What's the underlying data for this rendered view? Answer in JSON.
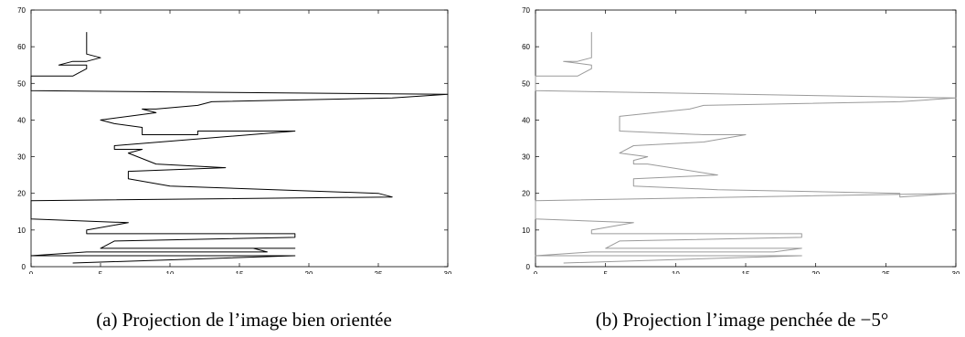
{
  "chart_data": [
    {
      "type": "line",
      "title": "",
      "xlabel": "",
      "ylabel": "",
      "xlim": [
        0,
        30
      ],
      "ylim": [
        0,
        70
      ],
      "xticks": [
        0,
        5,
        10,
        15,
        20,
        25,
        30
      ],
      "yticks": [
        0,
        10,
        20,
        30,
        40,
        50,
        60,
        70
      ],
      "grid": false,
      "line_color": "#000000",
      "caption": "(a) Projection de l’image bien orientée",
      "series": [
        {
          "x": [
            4,
            4,
            4,
            5,
            4,
            3,
            2,
            4,
            4,
            3,
            0,
            0,
            30,
            26,
            13,
            12,
            9,
            8,
            9,
            5,
            6,
            8,
            8,
            12,
            12,
            19,
            6,
            6,
            8,
            7,
            9,
            14,
            7,
            7,
            10,
            25,
            26,
            0,
            0,
            0,
            7,
            4,
            4,
            19,
            19,
            6,
            5,
            19,
            16,
            17,
            4,
            0,
            19,
            3
          ],
          "y": [
            64,
            60,
            58,
            57,
            56,
            56,
            55,
            55,
            54,
            52,
            52,
            48,
            47,
            46,
            45,
            44,
            43,
            43,
            42,
            40,
            39,
            38,
            36,
            36,
            37,
            37,
            33,
            32,
            32,
            31,
            28,
            27,
            26,
            24,
            22,
            20,
            19,
            18,
            13,
            13,
            12,
            10,
            9,
            9,
            8,
            7,
            5,
            5,
            5,
            4,
            4,
            3,
            3,
            1
          ]
        }
      ]
    },
    {
      "type": "line",
      "title": "",
      "xlabel": "",
      "ylabel": "",
      "xlim": [
        0,
        30
      ],
      "ylim": [
        0,
        70
      ],
      "xticks": [
        0,
        5,
        10,
        15,
        20,
        25,
        30
      ],
      "yticks": [
        0,
        10,
        20,
        30,
        40,
        50,
        60,
        70
      ],
      "grid": false,
      "line_color": "#9a9a9a",
      "caption": "(b) Projection l’image penchée de −5°",
      "series": [
        {
          "x": [
            4,
            4,
            4,
            4,
            3,
            2,
            4,
            4,
            3,
            0,
            0,
            30,
            26,
            12,
            12,
            11,
            6,
            6,
            12,
            12,
            15,
            12,
            7,
            6,
            8,
            7,
            7,
            8,
            13,
            7,
            7,
            13,
            26,
            26,
            30,
            0,
            0,
            0,
            7,
            4,
            4,
            19,
            19,
            6,
            5,
            19,
            17,
            17,
            4,
            0,
            19,
            2
          ],
          "y": [
            64,
            60,
            58,
            57,
            56,
            56,
            55,
            54,
            52,
            52,
            48,
            46,
            45,
            44,
            44,
            43,
            41,
            37,
            36,
            36,
            36,
            34,
            33,
            31,
            30,
            29,
            28,
            28,
            25,
            24,
            22,
            21,
            20,
            19,
            20,
            18,
            13,
            13,
            12,
            10,
            9,
            9,
            8,
            7,
            5,
            5,
            4,
            4,
            4,
            3,
            3,
            1
          ]
        }
      ]
    }
  ]
}
